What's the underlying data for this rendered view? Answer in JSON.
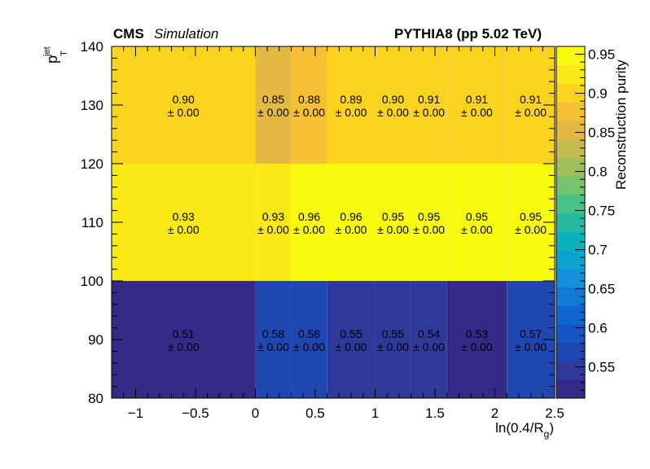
{
  "header": {
    "experiment": "CMS",
    "status": "Simulation",
    "generator": "PYTHIA8 (pp 5.02 TeV)"
  },
  "chart_data": {
    "type": "heatmap",
    "xlabel": "ln(0.4/R",
    "xlabel_sub": "g",
    "xlabel_close": ")",
    "ylabel": "p",
    "ylabel_sup": "jet",
    "ylabel_sub": "T",
    "zlabel": "Reconstruction purity",
    "x_edges": [
      -1.2,
      0,
      0.3,
      0.6,
      1.0,
      1.3,
      1.6,
      2.1,
      2.5
    ],
    "y_edges": [
      80,
      100,
      120,
      140
    ],
    "xlim": [
      -1.2,
      2.5
    ],
    "ylim": [
      80,
      140
    ],
    "zlim": [
      0.51,
      0.96
    ],
    "x_ticks": [
      -1,
      -0.5,
      0,
      0.5,
      1,
      1.5,
      2,
      2.5
    ],
    "x_tick_labels": [
      "−1",
      "−0.5",
      "0",
      "0.5",
      "1",
      "1.5",
      "2",
      "2.5"
    ],
    "y_ticks": [
      80,
      90,
      100,
      110,
      120,
      130,
      140
    ],
    "y_tick_labels": [
      "80",
      "90",
      "100",
      "110",
      "120",
      "130",
      "140"
    ],
    "z_ticks": [
      0.55,
      0.6,
      0.65,
      0.7,
      0.75,
      0.8,
      0.85,
      0.9,
      0.95
    ],
    "z_tick_labels": [
      "0.55",
      "0.6",
      "0.65",
      "0.7",
      "0.75",
      "0.8",
      "0.85",
      "0.9",
      "0.95"
    ],
    "rows": [
      {
        "y_range": [
          80,
          100
        ],
        "values": [
          0.51,
          0.58,
          0.58,
          0.55,
          0.55,
          0.54,
          0.53,
          0.57
        ],
        "labels": [
          "0.51",
          "0.58",
          "0.58",
          "0.55",
          "0.55",
          "0.54",
          "0.53",
          "0.57"
        ],
        "errors": [
          "± 0.00",
          "± 0.00",
          "± 0.00",
          "± 0.00",
          "± 0.00",
          "± 0.00",
          "± 0.00",
          "± 0.00"
        ]
      },
      {
        "y_range": [
          100,
          120
        ],
        "values": [
          0.93,
          0.93,
          0.96,
          0.96,
          0.95,
          0.95,
          0.95,
          0.95
        ],
        "labels": [
          "0.93",
          "0.93",
          "0.96",
          "0.96",
          "0.95",
          "0.95",
          "0.95",
          "0.95"
        ],
        "errors": [
          "± 0.00",
          "± 0.00",
          "± 0.00",
          "± 0.00",
          "± 0.00",
          "± 0.00",
          "± 0.00",
          "± 0.00"
        ]
      },
      {
        "y_range": [
          120,
          140
        ],
        "values": [
          0.9,
          0.85,
          0.88,
          0.89,
          0.9,
          0.91,
          0.91,
          0.91
        ],
        "labels": [
          "0.90",
          "0.85",
          "0.88",
          "0.89",
          "0.90",
          "0.91",
          "0.91",
          "0.91"
        ],
        "errors": [
          "± 0.00",
          "± 0.00",
          "± 0.00",
          "± 0.00",
          "± 0.00",
          "± 0.00",
          "± 0.00",
          "± 0.00"
        ]
      }
    ],
    "palette": [
      "#352a87",
      "#2e3a9a",
      "#2047b1",
      "#1555c4",
      "#0f66d2",
      "#107ad6",
      "#1290d8",
      "#0aa3ce",
      "#0db1bb",
      "#27b9a3",
      "#48c088",
      "#75c26f",
      "#a0bf5b",
      "#c6bb50",
      "#e3b943",
      "#f7c032",
      "#fcd41f",
      "#fbe817",
      "#f9fb0e"
    ],
    "grid": false
  }
}
